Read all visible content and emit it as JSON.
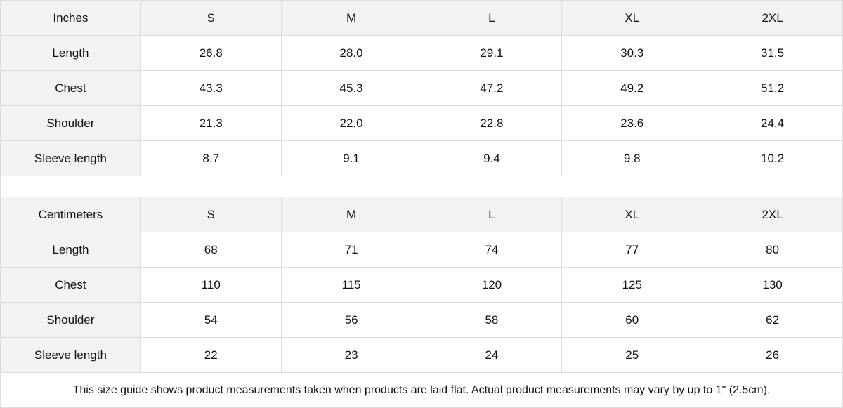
{
  "tables": [
    {
      "unit": "Inches",
      "sizes": [
        "S",
        "M",
        "L",
        "XL",
        "2XL"
      ],
      "rows": [
        {
          "label": "Length",
          "values": [
            "26.8",
            "28.0",
            "29.1",
            "30.3",
            "31.5"
          ]
        },
        {
          "label": "Chest",
          "values": [
            "43.3",
            "45.3",
            "47.2",
            "49.2",
            "51.2"
          ]
        },
        {
          "label": "Shoulder",
          "values": [
            "21.3",
            "22.0",
            "22.8",
            "23.6",
            "24.4"
          ]
        },
        {
          "label": "Sleeve length",
          "values": [
            "8.7",
            "9.1",
            "9.4",
            "9.8",
            "10.2"
          ]
        }
      ]
    },
    {
      "unit": "Centimeters",
      "sizes": [
        "S",
        "M",
        "L",
        "XL",
        "2XL"
      ],
      "rows": [
        {
          "label": "Length",
          "values": [
            "68",
            "71",
            "74",
            "77",
            "80"
          ]
        },
        {
          "label": "Chest",
          "values": [
            "110",
            "115",
            "120",
            "125",
            "130"
          ]
        },
        {
          "label": "Shoulder",
          "values": [
            "54",
            "56",
            "58",
            "60",
            "62"
          ]
        },
        {
          "label": "Sleeve length",
          "values": [
            "22",
            "23",
            "24",
            "25",
            "26"
          ]
        }
      ]
    }
  ],
  "footer_note": "This size guide shows product measurements taken when products are laid flat.  Actual product measurements may vary by up to 1\" (2.5cm).",
  "colors": {
    "header_bg": "#f2f2f2",
    "border": "#dddddd"
  }
}
